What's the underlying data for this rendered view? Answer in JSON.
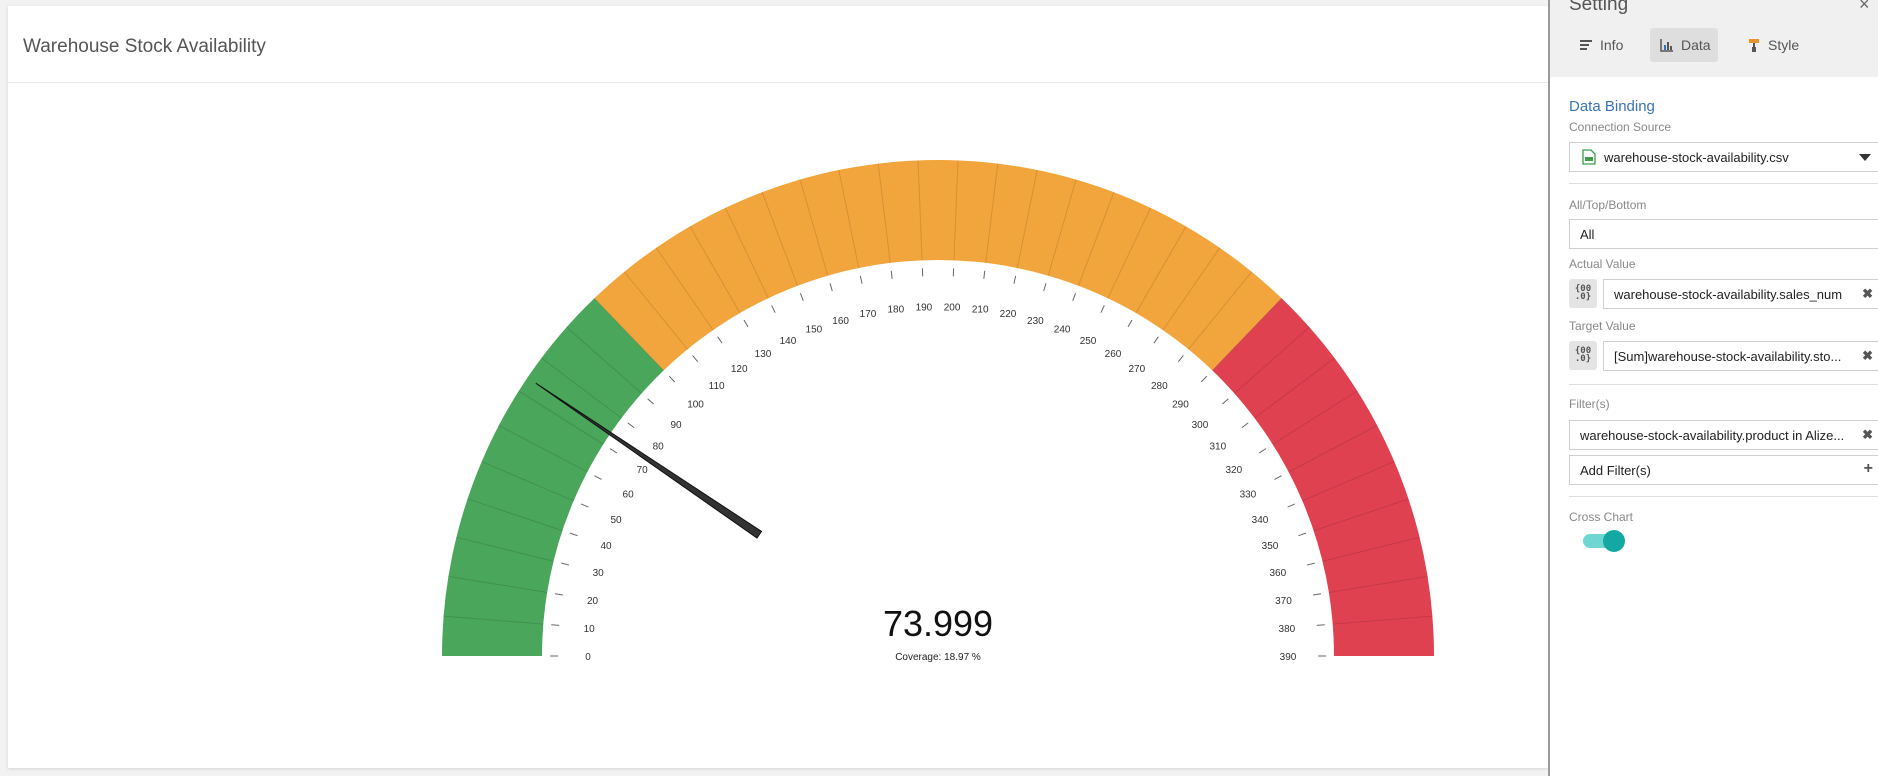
{
  "card": {
    "title": "Warehouse Stock Availability"
  },
  "chart_data": {
    "type": "gauge",
    "min": 0,
    "max": 390,
    "tick_step": 10,
    "value": 73.999,
    "value_label": "73.999",
    "coverage_label": "Coverage: 18.97 %",
    "bands": [
      {
        "from": 0,
        "to": 100,
        "color": "#4aa65a"
      },
      {
        "from": 100,
        "to": 290,
        "color": "#f2a53c"
      },
      {
        "from": 290,
        "to": 390,
        "color": "#e04150"
      }
    ],
    "needle_color": "#333333"
  },
  "panel": {
    "title": "Setting",
    "close": "×",
    "tabs": [
      {
        "label": "Info"
      },
      {
        "label": "Data"
      },
      {
        "label": "Style"
      }
    ],
    "section_title": "Data Binding",
    "connection_label": "Connection Source",
    "connection_value": "warehouse-stock-availability.csv",
    "top_bottom_label": "All/Top/Bottom",
    "top_bottom_value": "All",
    "actual_label": "Actual Value",
    "actual_value": "warehouse-stock-availability.sales_num",
    "target_label": "Target Value",
    "target_value": "[Sum]warehouse-stock-availability.sto...",
    "filters_label": "Filter(s)",
    "filter_value": "warehouse-stock-availability.product in Alize...",
    "add_filter_label": "Add Filter(s)",
    "cross_chart_label": "Cross Chart",
    "cross_chart_on": true
  }
}
